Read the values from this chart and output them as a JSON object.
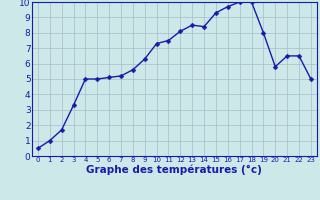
{
  "x": [
    0,
    1,
    2,
    3,
    4,
    5,
    6,
    7,
    8,
    9,
    10,
    11,
    12,
    13,
    14,
    15,
    16,
    17,
    18,
    19,
    20,
    21,
    22,
    23
  ],
  "y": [
    0.5,
    1.0,
    1.7,
    3.3,
    5.0,
    5.0,
    5.1,
    5.2,
    5.6,
    6.3,
    7.3,
    7.5,
    8.1,
    8.5,
    8.4,
    9.3,
    9.7,
    10.0,
    10.0,
    8.0,
    5.8,
    6.5,
    6.5,
    5.0
  ],
  "line_color": "#1a1aaa",
  "marker_color": "#1a1aaa",
  "background_color": "#cce8e8",
  "grid_color": "#aabbcc",
  "xlabel": "Graphe des températures (°c)",
  "xlabel_color": "#1a1aaa",
  "xlabel_fontsize": 7.5,
  "tick_color": "#1a1aaa",
  "tick_fontsize_x": 5.0,
  "tick_fontsize_y": 6.5,
  "xlim": [
    -0.5,
    23.5
  ],
  "ylim": [
    0,
    10
  ],
  "yticks": [
    0,
    1,
    2,
    3,
    4,
    5,
    6,
    7,
    8,
    9,
    10
  ],
  "xticks": [
    0,
    1,
    2,
    3,
    4,
    5,
    6,
    7,
    8,
    9,
    10,
    11,
    12,
    13,
    14,
    15,
    16,
    17,
    18,
    19,
    20,
    21,
    22,
    23
  ],
  "marker_size": 2.5,
  "line_width": 1.0
}
